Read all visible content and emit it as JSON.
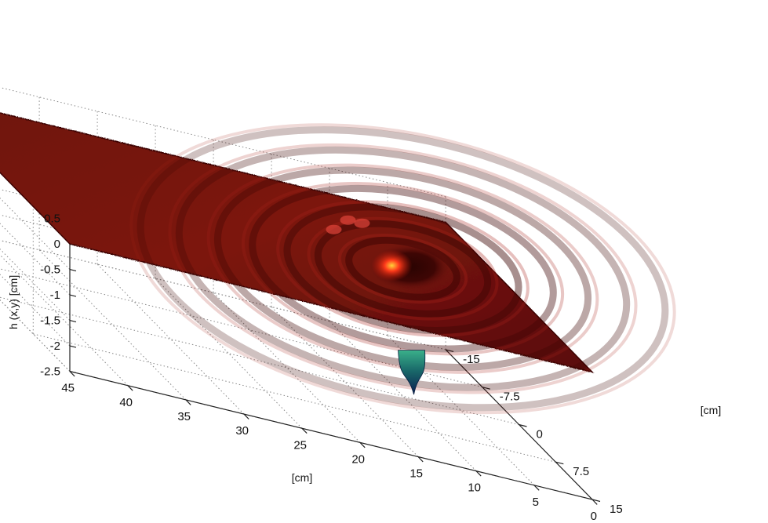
{
  "chart_data": {
    "type": "surface",
    "title": "",
    "xlabel": "[cm]",
    "ylabel": "[cm]",
    "zlabel": "h (x,y) [cm]",
    "x_ticks": [
      "0",
      "5",
      "10",
      "15",
      "20",
      "25",
      "30",
      "35",
      "40",
      "45"
    ],
    "y_ticks": [
      "-15",
      "-7.5",
      "0",
      "7.5",
      "15"
    ],
    "z_ticks": [
      "0.5",
      "0",
      "-0.5",
      "-1",
      "-1.5",
      "-2",
      "-2.5"
    ],
    "xlim": [
      0,
      45
    ],
    "ylim": [
      -15,
      15
    ],
    "zlim": [
      -2.5,
      0.5
    ],
    "grid": true,
    "colormap": "jet",
    "surface_level": 0,
    "vortex_center": {
      "x": 10,
      "y": 0
    },
    "vortex_min_depth": -2.5,
    "colors": {
      "surface": "#7a1410",
      "surface_dark": "#4a0806",
      "highlight": "#ff3a1a",
      "core_top": "#2a9a78",
      "core_bottom": "#0a2a5a",
      "grid": "#888888"
    }
  }
}
